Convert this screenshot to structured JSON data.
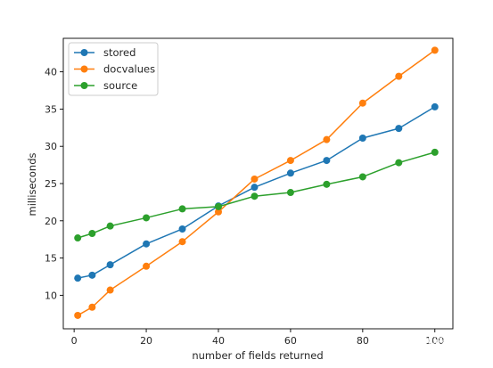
{
  "chart_data": {
    "type": "line",
    "xlabel": "number of fields returned",
    "ylabel": "milliseconds",
    "xlim": [
      -3,
      105
    ],
    "ylim": [
      5.5,
      44.5
    ],
    "xticks": [
      0,
      20,
      40,
      60,
      80,
      100
    ],
    "yticks": [
      10,
      15,
      20,
      25,
      30,
      35,
      40
    ],
    "x": [
      1,
      5,
      10,
      20,
      30,
      40,
      50,
      60,
      70,
      80,
      90,
      100
    ],
    "series": [
      {
        "name": "stored",
        "color": "#1f77b4",
        "values": [
          12.3,
          12.7,
          14.1,
          16.9,
          18.9,
          22.0,
          24.5,
          26.4,
          28.1,
          31.1,
          32.4,
          35.3
        ]
      },
      {
        "name": "docvalues",
        "color": "#ff7f0e",
        "values": [
          7.3,
          8.4,
          10.7,
          13.9,
          17.2,
          21.2,
          25.6,
          28.1,
          30.9,
          35.8,
          39.4,
          42.9
        ]
      },
      {
        "name": "source",
        "color": "#2ca02c",
        "values": [
          17.7,
          18.3,
          19.3,
          20.4,
          21.6,
          21.9,
          23.3,
          23.8,
          24.9,
          25.9,
          27.8,
          29.2
        ]
      }
    ],
    "legend_position": "top-left",
    "grid": false
  },
  "watermark": {
    "text": "知乎 @傲娇宾宾花"
  }
}
